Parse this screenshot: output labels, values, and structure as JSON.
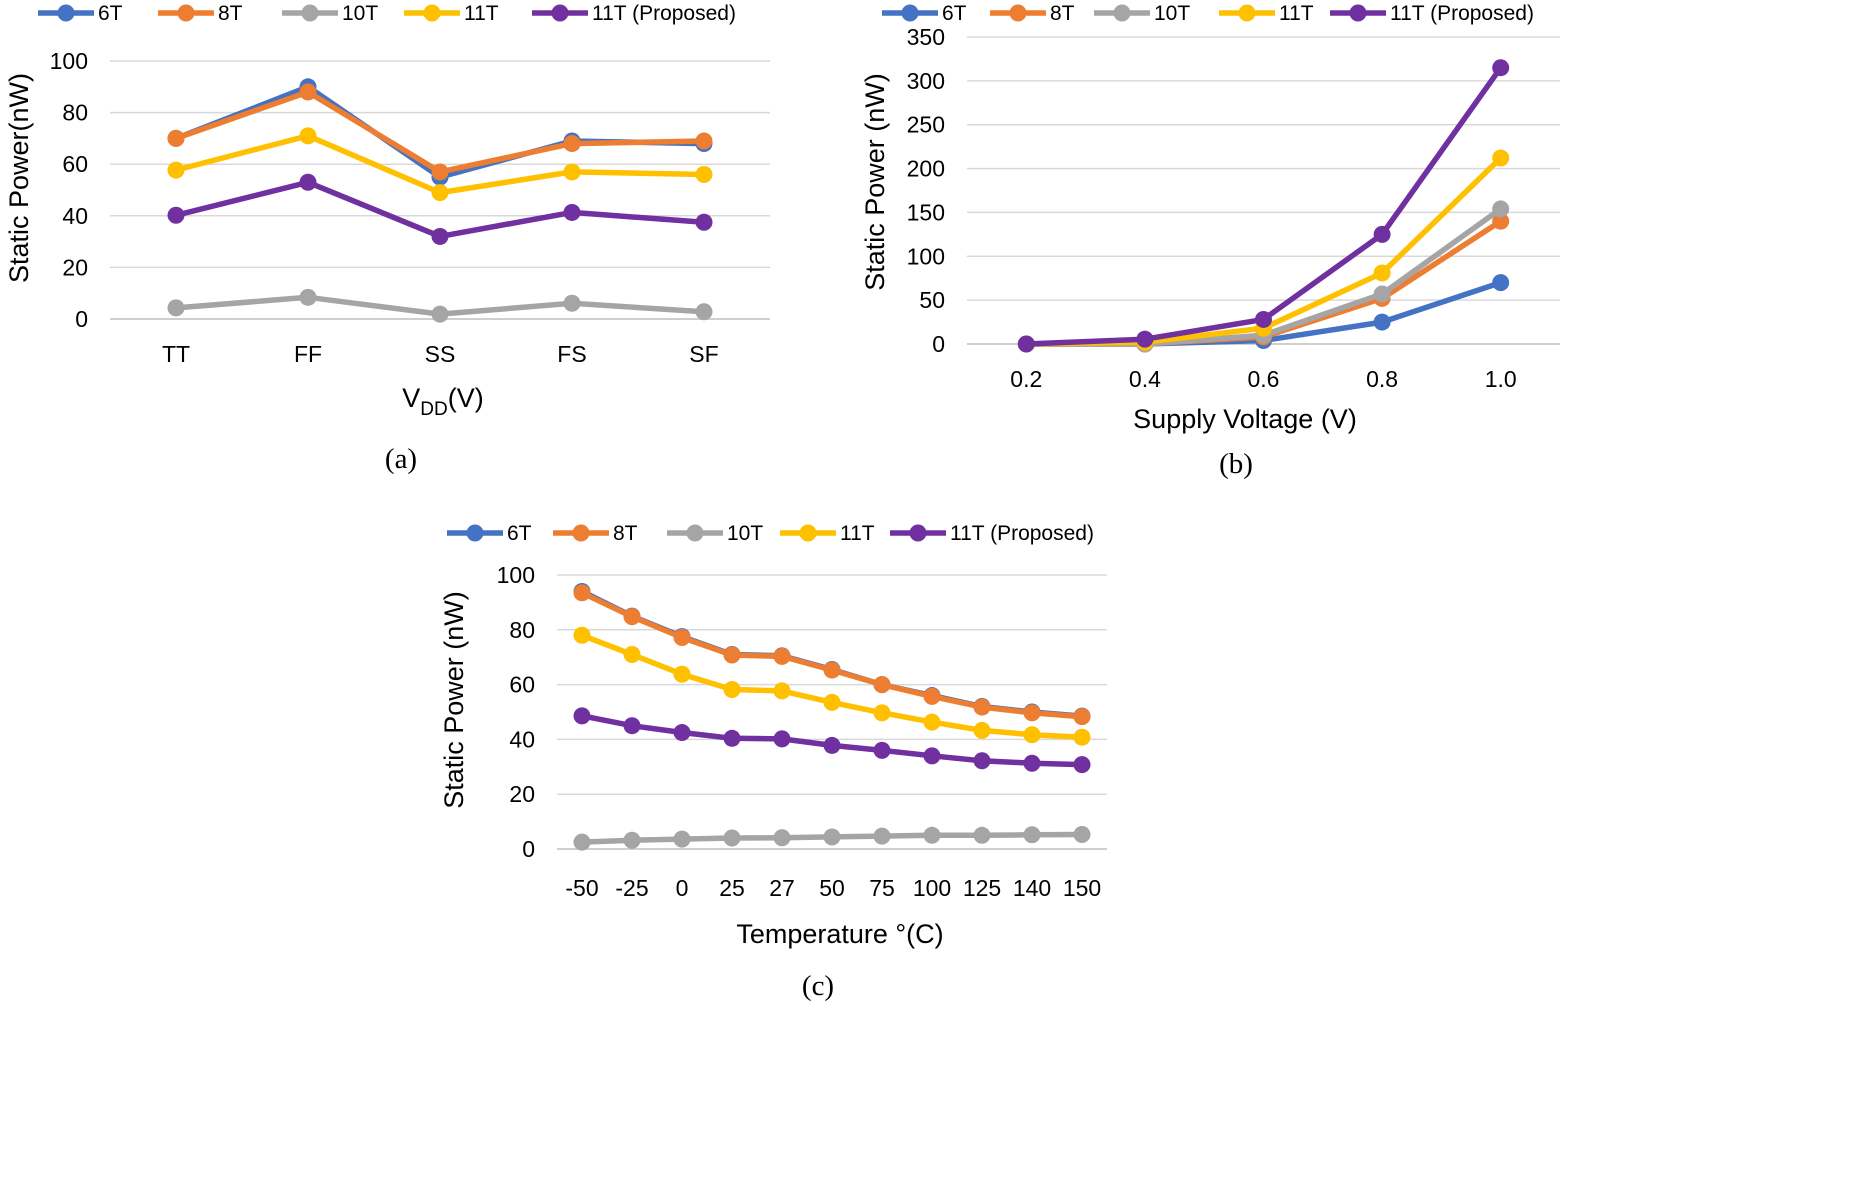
{
  "colors": {
    "6T": "#4472C4",
    "8T": "#ED7D31",
    "10T": "#A5A5A5",
    "11T": "#FFC000",
    "11T (Proposed)": "#7030A0",
    "grid": "#d9d9d9",
    "axis": "#bfbfbf",
    "text": "#000000"
  },
  "chart_data": [
    {
      "panel": "a",
      "type": "line",
      "caption": "(a)",
      "categories": [
        "TT",
        "FF",
        "SS",
        "FS",
        "SF"
      ],
      "xlabel_main": "V",
      "xlabel_sub": "DD",
      "xlabel_rest": "(V)",
      "ylabel": "Static Power(nW)",
      "ylim": [
        0,
        100
      ],
      "yticks": [
        0,
        20,
        40,
        60,
        80,
        100
      ],
      "grid": true,
      "legend": [
        "6T",
        "8T",
        "10T",
        "11T",
        "11T (Proposed)"
      ],
      "series": [
        {
          "name": "6T",
          "values": [
            70,
            90,
            55,
            69,
            68
          ]
        },
        {
          "name": "8T",
          "values": [
            70,
            88,
            57,
            68,
            69
          ]
        },
        {
          "name": "10T",
          "values": [
            4.3,
            8.4,
            1.9,
            6.1,
            2.8
          ]
        },
        {
          "name": "11T",
          "values": [
            57.7,
            71,
            49,
            57,
            56
          ]
        },
        {
          "name": "11T (Proposed)",
          "values": [
            40.2,
            53,
            32,
            41.3,
            37.5
          ]
        }
      ]
    },
    {
      "panel": "b",
      "type": "line",
      "caption": "(b)",
      "categories": [
        "0.2",
        "0.4",
        "0.6",
        "0.8",
        "1.0"
      ],
      "xlabel": "Supply Voltage (V)",
      "ylabel": "Static Power (nW)",
      "ylim": [
        0,
        350
      ],
      "yticks": [
        0,
        50,
        100,
        150,
        200,
        250,
        300,
        350
      ],
      "grid": true,
      "legend": [
        "6T",
        "8T",
        "10T",
        "11T",
        "11T (Proposed)"
      ],
      "series": [
        {
          "name": "6T",
          "values": [
            0,
            0,
            4,
            25,
            70
          ]
        },
        {
          "name": "8T",
          "values": [
            0,
            0,
            8,
            52,
            140
          ]
        },
        {
          "name": "10T",
          "values": [
            0,
            0,
            10,
            57,
            154
          ]
        },
        {
          "name": "11T",
          "values": [
            0,
            2,
            18,
            81,
            212
          ]
        },
        {
          "name": "11T (Proposed)",
          "values": [
            0,
            5.5,
            28,
            125,
            315
          ]
        }
      ]
    },
    {
      "panel": "c",
      "type": "line",
      "caption": "(c)",
      "categories": [
        "-50",
        "-25",
        "0",
        "25",
        "27",
        "50",
        "75",
        "100",
        "125",
        "140",
        "150"
      ],
      "xlabel": "Temperature °(C)",
      "ylabel": "Static Power (nW)",
      "ylim": [
        0,
        100
      ],
      "yticks": [
        0,
        20,
        40,
        60,
        80,
        100
      ],
      "grid": true,
      "legend": [
        "6T",
        "8T",
        "10T",
        "11T",
        "11T (Proposed)"
      ],
      "series": [
        {
          "name": "6T",
          "values": [
            94,
            85,
            77.5,
            71,
            70.5,
            65.5,
            60,
            56,
            52,
            50,
            48.5
          ]
        },
        {
          "name": "8T",
          "values": [
            93.5,
            84.8,
            77.2,
            70.8,
            70.3,
            65.3,
            60,
            55.7,
            51.8,
            49.7,
            48.3
          ]
        },
        {
          "name": "10T",
          "values": [
            2.5,
            3.2,
            3.6,
            4,
            4.1,
            4.4,
            4.7,
            5,
            5,
            5.2,
            5.3
          ]
        },
        {
          "name": "11T",
          "values": [
            78,
            71,
            63.8,
            58.2,
            57.7,
            53.5,
            49.7,
            46.3,
            43.3,
            41.7,
            40.8
          ]
        },
        {
          "name": "11T (Proposed)",
          "values": [
            48.6,
            45,
            42.5,
            40.4,
            40.2,
            37.8,
            36,
            34,
            32.2,
            31.3,
            30.8
          ]
        }
      ]
    }
  ]
}
